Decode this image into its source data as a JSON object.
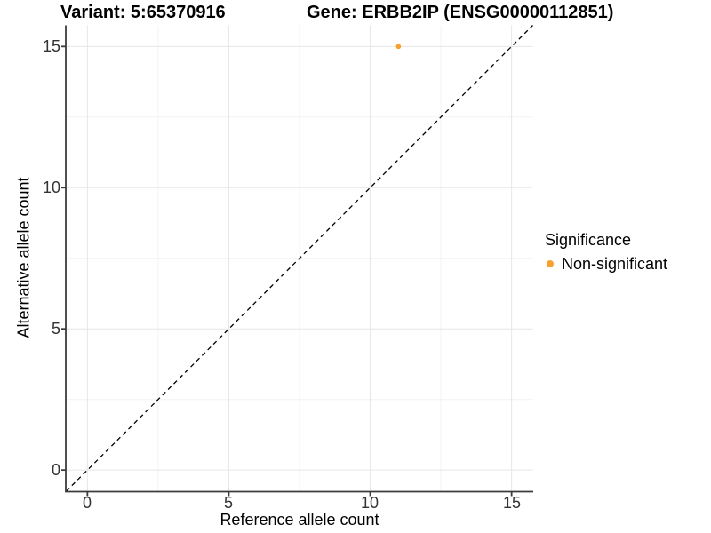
{
  "figure": {
    "title_variant": "Variant: 5:65370916",
    "title_gene": "Gene: ERBB2IP (ENSG00000112851)"
  },
  "axes": {
    "x_label": "Reference allele count",
    "y_label": "Alternative allele count",
    "x_ticks": [
      "0",
      "5",
      "10",
      "15"
    ],
    "y_ticks": [
      "0",
      "5",
      "10",
      "15"
    ]
  },
  "legend": {
    "title": "Significance",
    "items": [
      {
        "label": "Non-significant",
        "color": "#F9A02E"
      }
    ]
  },
  "chart_data": {
    "type": "scatter",
    "title": "Variant: 5:65370916 / Gene: ERBB2IP (ENSG00000112851)",
    "xlabel": "Reference allele count",
    "ylabel": "Alternative allele count",
    "xlim": [
      -0.75,
      15.75
    ],
    "ylim": [
      -0.75,
      15.75
    ],
    "x_major_ticks": [
      0,
      5,
      10,
      15
    ],
    "y_major_ticks": [
      0,
      5,
      10,
      15
    ],
    "x_minor_ticks": [
      2.5,
      7.5,
      12.5
    ],
    "y_minor_ticks": [
      2.5,
      7.5,
      12.5
    ],
    "grid": "major and minor gridlines, light gray on white panel",
    "legend_position": "right-center",
    "series": [
      {
        "name": "Non-significant",
        "color": "#F9A02E",
        "points": [
          [
            11,
            15
          ]
        ]
      }
    ],
    "annotations": [
      {
        "type": "reference-line",
        "equation": "y = x",
        "style": "dashed",
        "color": "#000000",
        "span": [
          [
            -0.75,
            -0.75
          ],
          [
            15.75,
            15.75
          ]
        ]
      }
    ]
  },
  "colors": {
    "non_significant": "#F9A02E",
    "grid_major": "#E6E6E6",
    "grid_minor": "#F2F2F2",
    "axis_line": "#3C3C3C",
    "tick_mark": "#3C3C3C",
    "dashed_line": "#000000",
    "background": "#FFFFFF"
  }
}
